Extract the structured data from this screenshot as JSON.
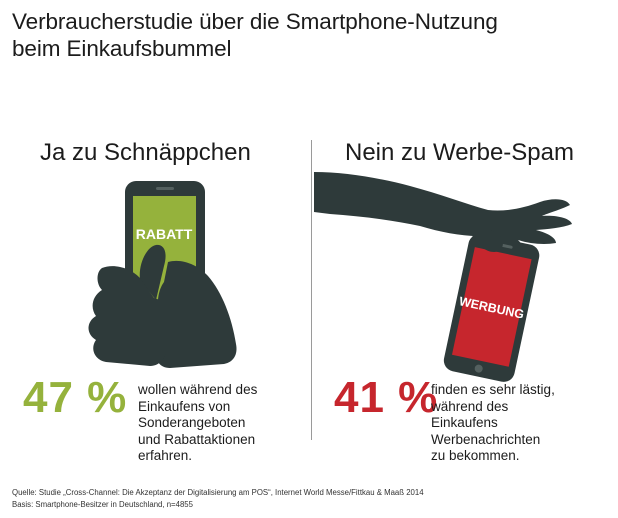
{
  "title": {
    "line1": "Verbraucherstudie über die Smartphone-Nutzung",
    "line2": "beim Einkaufsbummel"
  },
  "left": {
    "heading": "Ja zu Schnäppchen",
    "phone_label": "RABATT",
    "percent": "47 %",
    "text": [
      "wollen während des",
      "Einkaufens von",
      "Sonderangeboten",
      "und Rabattaktionen",
      "erfahren."
    ]
  },
  "right": {
    "heading": "Nein zu Werbe-Spam",
    "phone_label": "WERBUNG",
    "percent": "41 %",
    "text": [
      "finden es sehr lästig,",
      "während des",
      "Einkaufens",
      "Werbenachrichten",
      "zu bekommen."
    ]
  },
  "footer": {
    "source": "Quelle: Studie „Cross-Channel: Die Akzeptanz der Digitalisierung am POS“, Internet World Messe/Fittkau & Maaß 2014",
    "basis": "Basis: Smartphone-Besitzer in Deutschland, n=4855"
  },
  "colors": {
    "green": "#95b23c",
    "red": "#c6262d",
    "dark": "#2e3a3a"
  }
}
